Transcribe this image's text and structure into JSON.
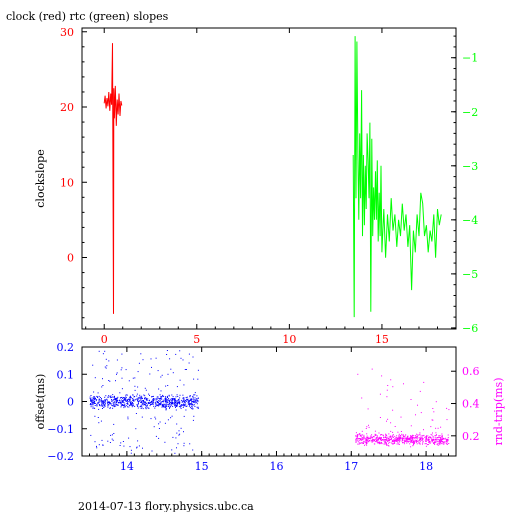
{
  "title": "clock (red) rtc (green) slopes",
  "footer": "2014-07-13 flory.physics.ubc.ca",
  "colors": {
    "clock": "#ff0000",
    "rtc": "#00ff00",
    "offset": "#0000ff",
    "rndtrip": "#ff00ff",
    "axis": "#000000"
  },
  "chart_data": [
    {
      "type": "line",
      "title": "clock (red) rtc (green) slopes",
      "xlim": [
        -1.2,
        19
      ],
      "xticks": [
        0,
        5,
        10,
        15
      ],
      "ylabel": "clockslope",
      "ylim": [
        -9.5,
        30.5
      ],
      "yticks": [
        0,
        10,
        20,
        30
      ],
      "y2lim": [
        -6.02,
        -0.45
      ],
      "y2ticks": [
        -1,
        -2,
        -3,
        -4,
        -5,
        -6
      ],
      "grid": false,
      "series": [
        {
          "name": "clock",
          "axis": "left",
          "color": "#ff0000",
          "x": [
            0.0,
            0.05,
            0.1,
            0.15,
            0.2,
            0.25,
            0.3,
            0.35,
            0.4,
            0.45,
            0.5,
            0.52,
            0.55,
            0.6,
            0.65,
            0.7,
            0.75,
            0.8,
            0.85,
            0.9,
            0.95
          ],
          "y": [
            20.5,
            21.5,
            19.8,
            21.2,
            20.1,
            22.0,
            19.5,
            21.8,
            20.3,
            28.5,
            -7.5,
            22.5,
            18.5,
            22.8,
            17.5,
            21.0,
            19.0,
            21.8,
            18.8,
            20.8,
            20.2
          ]
        },
        {
          "name": "rtc",
          "axis": "right",
          "color": "#00ff00",
          "x": [
            13.45,
            13.5,
            13.55,
            13.6,
            13.65,
            13.7,
            13.75,
            13.8,
            13.85,
            13.9,
            13.95,
            14.0,
            14.05,
            14.1,
            14.15,
            14.2,
            14.25,
            14.3,
            14.35,
            14.4,
            14.45,
            14.5,
            14.55,
            14.6,
            14.65,
            14.7,
            14.75,
            14.8,
            14.85,
            14.9,
            14.95,
            15.0,
            15.1,
            15.2,
            15.3,
            15.4,
            15.5,
            15.6,
            15.7,
            15.8,
            15.9,
            16.0,
            16.1,
            16.2,
            16.3,
            16.4,
            16.5,
            16.6,
            16.7,
            16.8,
            16.9,
            17.0,
            17.1,
            17.2,
            17.3,
            17.4,
            17.5,
            17.6,
            17.7,
            17.8,
            17.9,
            18.0,
            18.1,
            18.2
          ],
          "y": [
            -2.8,
            -5.8,
            -0.6,
            -3.6,
            -0.7,
            -2.8,
            -4.0,
            -2.4,
            -3.6,
            -1.6,
            -4.3,
            -2.8,
            -4.1,
            -3.0,
            -3.8,
            -2.4,
            -2.9,
            -3.6,
            -2.2,
            -5.7,
            -2.5,
            -4.3,
            -3.4,
            -4.0,
            -3.1,
            -4.0,
            -2.9,
            -4.4,
            -3.5,
            -4.3,
            -3.0,
            -4.6,
            -3.8,
            -4.7,
            -3.9,
            -4.4,
            -3.6,
            -4.2,
            -3.9,
            -4.5,
            -4.0,
            -4.3,
            -3.7,
            -4.2,
            -3.9,
            -4.5,
            -4.1,
            -5.3,
            -4.2,
            -4.6,
            -3.9,
            -4.3,
            -3.5,
            -3.7,
            -4.3,
            -4.1,
            -4.6,
            -4.2,
            -4.4,
            -3.9,
            -4.7,
            -3.8,
            -4.1,
            -3.9
          ]
        }
      ]
    },
    {
      "type": "scatter",
      "xlim": [
        13.4,
        18.4
      ],
      "xticks": [
        14,
        15,
        16,
        17,
        18
      ],
      "ylabel": "offset(ms)",
      "ylim": [
        -0.2,
        0.2
      ],
      "yticks": [
        -0.2,
        -0.1,
        0,
        0.1,
        0.2
      ],
      "y2label": "rnd-trip(ms)",
      "y2lim": [
        0.075,
        0.75
      ],
      "y2ticks": [
        0.2,
        0.4,
        0.6
      ],
      "grid": false,
      "series": [
        {
          "name": "offset",
          "axis": "left",
          "color": "#0000ff",
          "x_range": [
            13.5,
            14.95
          ],
          "y_center": 0.0,
          "y_band": 0.025,
          "y_outlier_extent": 0.19,
          "n_points": 900
        },
        {
          "name": "rnd-trip",
          "axis": "right",
          "color": "#ff00ff",
          "x_range": [
            17.05,
            18.3
          ],
          "y_center": 0.18,
          "y_band": 0.04,
          "y_outlier_max": 0.72,
          "n_points": 700
        }
      ]
    }
  ]
}
